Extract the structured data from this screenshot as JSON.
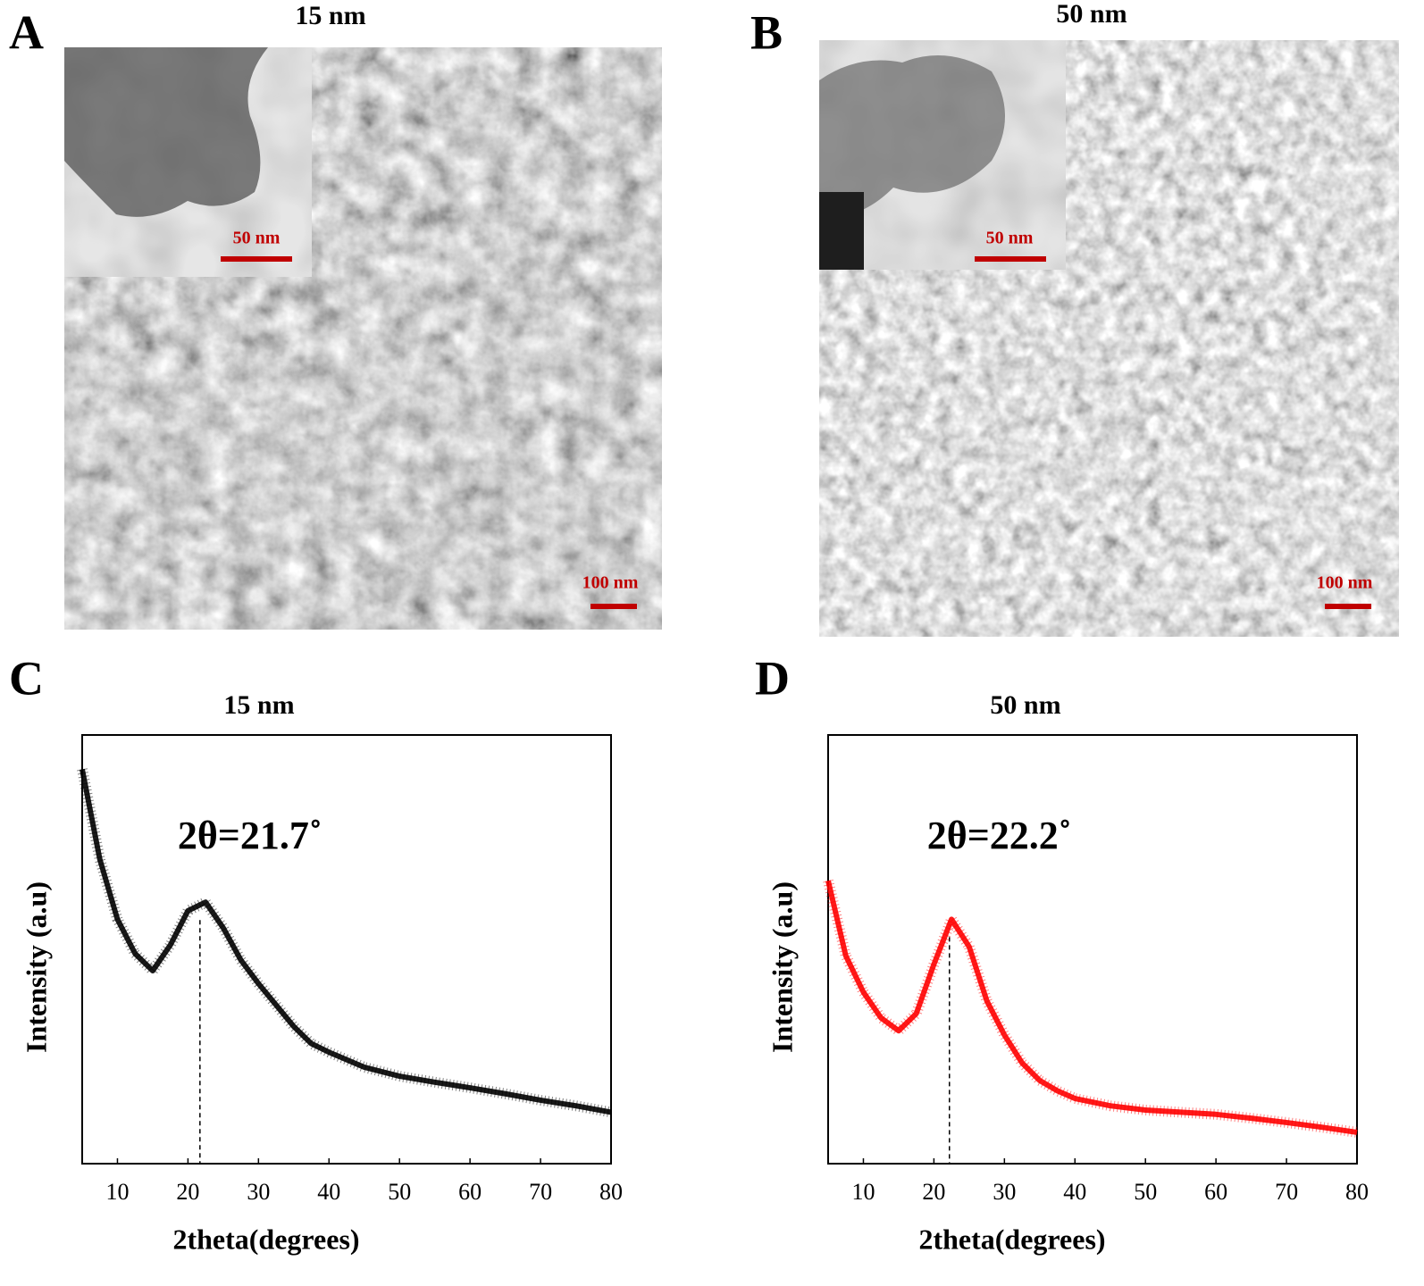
{
  "panels": [
    {
      "letter": "A",
      "title": "15 nm",
      "inset_scale": "50 nm",
      "scale": "100 nm"
    },
    {
      "letter": "B",
      "title": "50 nm",
      "inset_scale": "50 nm",
      "scale": "100 nm"
    }
  ],
  "chart_data": [
    {
      "type": "line",
      "panel": "C",
      "title": "15 nm",
      "x_label": "2theta(degrees)",
      "y_label": "Intensity (a.u)",
      "annotation": "2θ=21.7˚",
      "peak_x": 21.7,
      "color": "#000000",
      "x": [
        5,
        7.5,
        10,
        12.5,
        15,
        17.5,
        20,
        22.5,
        25,
        27.5,
        30,
        32.5,
        35,
        37.5,
        40,
        45,
        50,
        55,
        60,
        65,
        70,
        75,
        80
      ],
      "values": [
        92,
        71,
        57,
        49,
        45,
        51,
        59,
        61,
        55,
        47.5,
        42,
        37,
        32,
        28,
        26,
        22.5,
        20.4,
        19,
        17.7,
        16.3,
        14.8,
        13.5,
        12
      ],
      "xlim": [
        5,
        80
      ],
      "xticks": [
        10,
        20,
        30,
        40,
        50,
        60,
        70,
        80
      ],
      "ylim": [
        0,
        100
      ]
    },
    {
      "type": "line",
      "panel": "D",
      "title": "50 nm",
      "x_label": "2theta(degrees)",
      "y_label": "Intensity (a.u)",
      "annotation": "2θ=22.2˚",
      "peak_x": 22.2,
      "color": "#ff0000",
      "x": [
        5,
        7.5,
        10,
        12.5,
        15,
        17.5,
        20,
        22.5,
        25,
        27.5,
        30,
        32.5,
        35,
        37.5,
        40,
        45,
        50,
        55,
        60,
        65,
        70,
        75,
        80
      ],
      "values": [
        66,
        48.5,
        40,
        34,
        31,
        35,
        46.5,
        57,
        50.6,
        38,
        30,
        23.5,
        19.4,
        17,
        15.2,
        13.5,
        12.5,
        12,
        11.5,
        10.6,
        9.6,
        8.5,
        7.3
      ],
      "xlim": [
        5,
        80
      ],
      "xticks": [
        10,
        20,
        30,
        40,
        50,
        60,
        70,
        80
      ],
      "ylim": [
        0,
        100
      ]
    }
  ]
}
